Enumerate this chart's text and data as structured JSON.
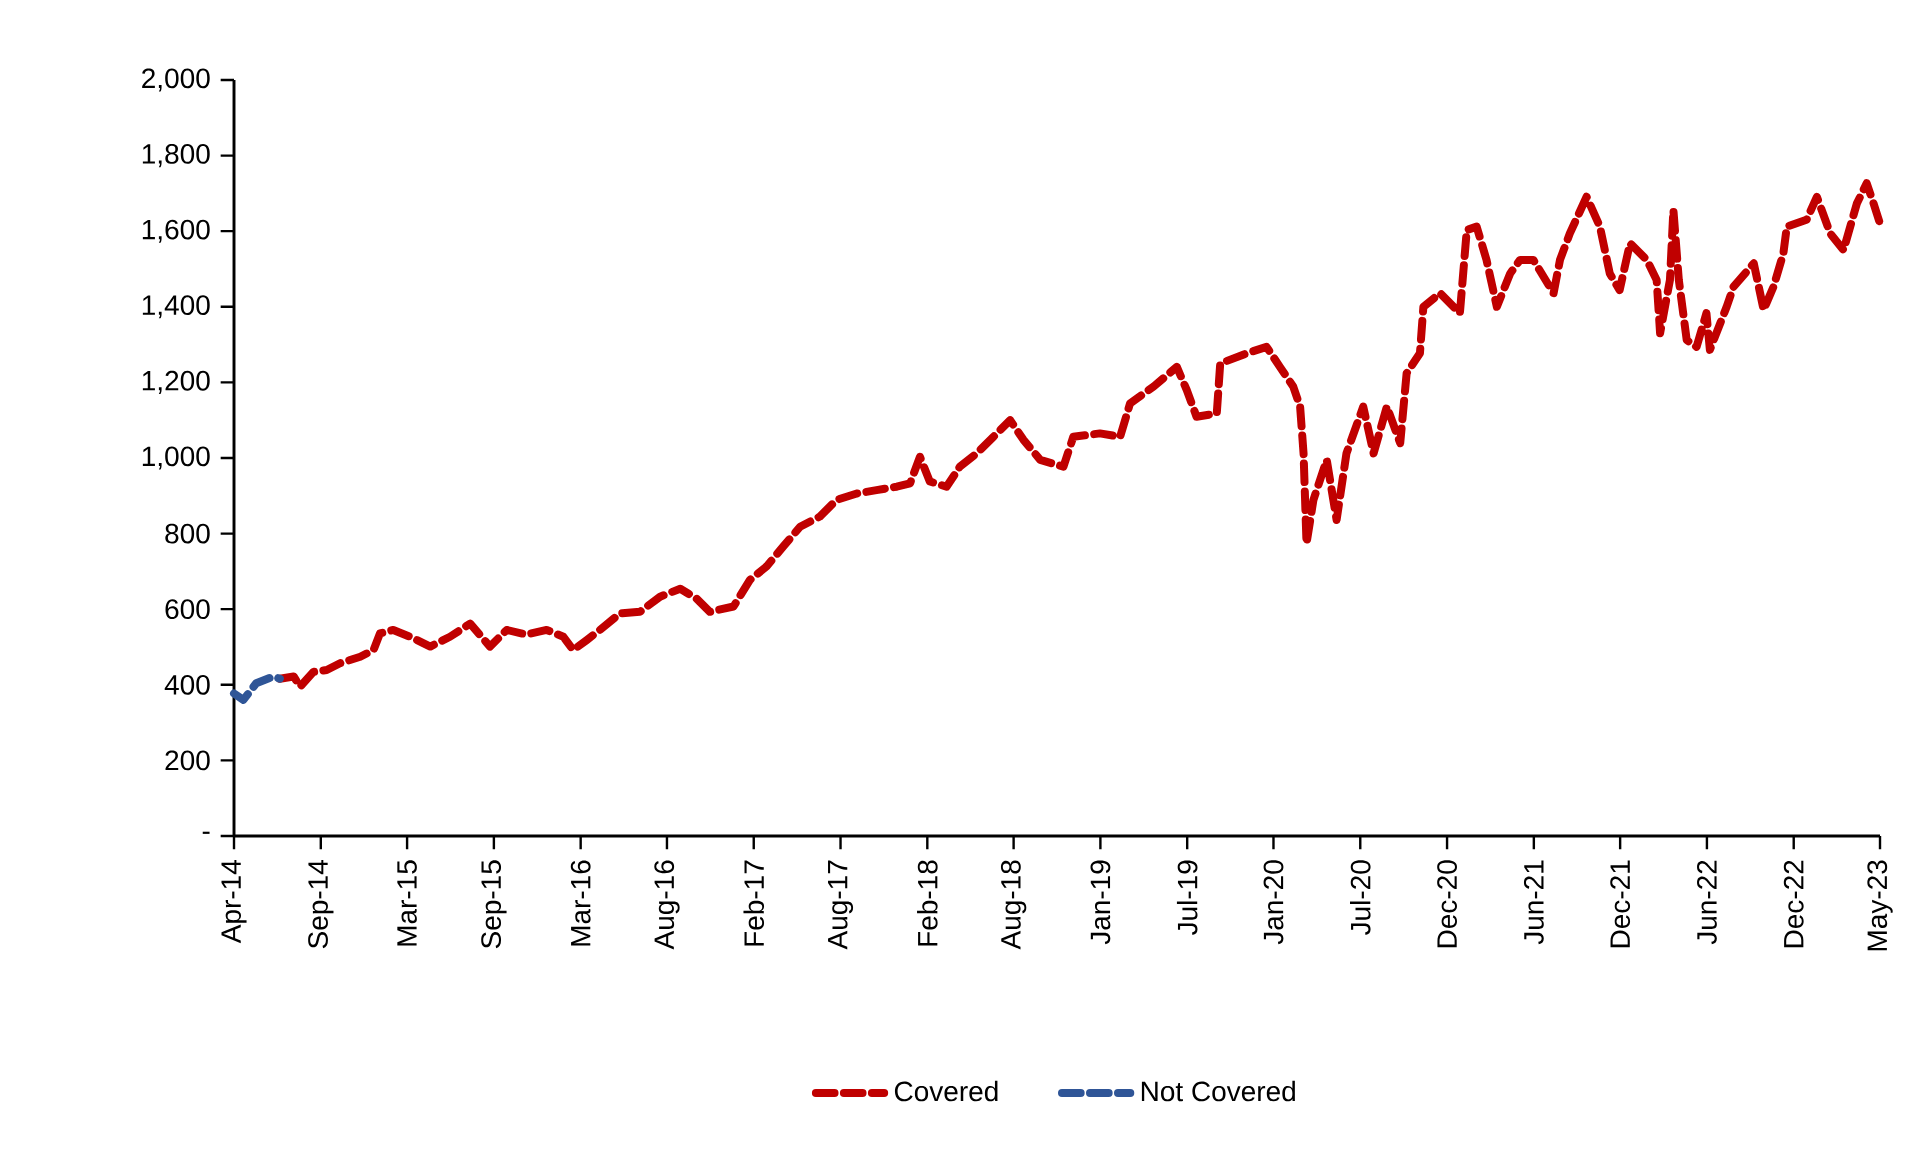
{
  "chart_data": {
    "type": "line",
    "line_style": "dashed",
    "legend": "bottom",
    "grid": false,
    "xlim": [
      "2014-04-05",
      "2023-05-26"
    ],
    "xticks": [
      {
        "value": "2014-04-05",
        "label": "Apr-14"
      },
      {
        "value": "2014-09-28",
        "label": "Sep-14"
      },
      {
        "value": "2015-03-22",
        "label": "Mar-15"
      },
      {
        "value": "2015-09-14",
        "label": "Sep-15"
      },
      {
        "value": "2016-03-08",
        "label": "Mar-16"
      },
      {
        "value": "2016-08-30",
        "label": "Aug-16"
      },
      {
        "value": "2017-02-22",
        "label": "Feb-17"
      },
      {
        "value": "2017-08-17",
        "label": "Aug-17"
      },
      {
        "value": "2018-02-09",
        "label": "Feb-18"
      },
      {
        "value": "2018-08-03",
        "label": "Aug-18"
      },
      {
        "value": "2019-01-26",
        "label": "Jan-19"
      },
      {
        "value": "2019-07-21",
        "label": "Jul-19"
      },
      {
        "value": "2020-01-12",
        "label": "Jan-20"
      },
      {
        "value": "2020-07-06",
        "label": "Jul-20"
      },
      {
        "value": "2020-12-29",
        "label": "Dec-20"
      },
      {
        "value": "2021-06-23",
        "label": "Jun-21"
      },
      {
        "value": "2021-12-15",
        "label": "Dec-21"
      },
      {
        "value": "2022-06-09",
        "label": "Jun-22"
      },
      {
        "value": "2022-12-02",
        "label": "Dec-22"
      },
      {
        "value": "2023-05-26",
        "label": "May-23"
      }
    ],
    "ylim": [
      0,
      2000
    ],
    "yticks": [
      {
        "value": 0,
        "label": "-"
      },
      200,
      400,
      600,
      800,
      {
        "value": 1000,
        "label": "1,000"
      },
      {
        "value": 1200,
        "label": "1,200"
      },
      {
        "value": 1400,
        "label": "1,400"
      },
      {
        "value": 1600,
        "label": "1,600"
      },
      {
        "value": 1800,
        "label": "1,800"
      },
      {
        "value": 2000,
        "label": "2,000"
      }
    ],
    "series": [
      {
        "name": "Covered",
        "color": "#c00000",
        "x": [
          "2014-07-07",
          "2014-08-04",
          "2014-08-17",
          "2014-09-13",
          "2014-10-10",
          "2014-11-06",
          "2014-12-17",
          "2015-01-13",
          "2015-01-26",
          "2015-02-22",
          "2015-03-28",
          "2015-05-08",
          "2015-06-17",
          "2015-07-28",
          "2015-09-06",
          "2015-10-10",
          "2015-11-19",
          "2015-12-30",
          "2016-02-02",
          "2016-02-22",
          "2016-03-20",
          "2016-04-16",
          "2016-05-27",
          "2016-07-06",
          "2016-08-16",
          "2016-09-26",
          "2016-10-29",
          "2016-11-25",
          "2017-01-12",
          "2017-02-14",
          "2017-03-20",
          "2017-04-23",
          "2017-05-27",
          "2017-07-06",
          "2017-08-09",
          "2017-09-19",
          "2017-10-29",
          "2017-12-09",
          "2018-01-05",
          "2018-01-25",
          "2018-02-14",
          "2018-03-20",
          "2018-04-16",
          "2018-05-20",
          "2018-06-23",
          "2018-07-27",
          "2018-08-23",
          "2018-09-26",
          "2018-11-12",
          "2018-12-02",
          "2019-01-25",
          "2019-03-07",
          "2019-03-27",
          "2019-05-14",
          "2019-06-30",
          "2019-07-20",
          "2019-08-09",
          "2019-09-19",
          "2019-09-26",
          "2019-11-19",
          "2019-12-29",
          "2020-01-25",
          "2020-02-21",
          "2020-03-06",
          "2020-03-13",
          "2020-03-19",
          "2020-04-02",
          "2020-04-29",
          "2020-05-19",
          "2020-06-08",
          "2020-07-12",
          "2020-08-02",
          "2020-08-29",
          "2020-09-25",
          "2020-10-08",
          "2020-11-04",
          "2020-11-11",
          "2020-12-15",
          "2021-01-24",
          "2021-02-07",
          "2021-02-27",
          "2021-03-19",
          "2021-04-09",
          "2021-05-06",
          "2021-05-26",
          "2021-06-22",
          "2021-08-02",
          "2021-08-15",
          "2021-09-04",
          "2021-10-08",
          "2021-11-04",
          "2021-11-24",
          "2021-12-14",
          "2022-01-04",
          "2022-02-07",
          "2022-02-27",
          "2022-03-06",
          "2022-03-26",
          "2022-04-02",
          "2022-04-13",
          "2022-04-29",
          "2022-05-19",
          "2022-06-08",
          "2022-06-15",
          "2022-07-19",
          "2022-08-02",
          "2022-09-12",
          "2022-10-02",
          "2022-10-22",
          "2022-11-11",
          "2022-11-18",
          "2022-12-28",
          "2023-01-18",
          "2023-02-14",
          "2023-03-13",
          "2023-04-09",
          "2023-04-29",
          "2023-05-13",
          "2023-05-26"
        ],
        "values": [
          416,
          422,
          395,
          434,
          439,
          457,
          474,
          492,
          536,
          545,
          527,
          501,
          527,
          562,
          501,
          545,
          533,
          545,
          527,
          492,
          518,
          545,
          589,
          593,
          633,
          654,
          628,
          593,
          607,
          677,
          713,
          766,
          818,
          845,
          889,
          906,
          915,
          924,
          933,
          1003,
          938,
          924,
          977,
          1012,
          1056,
          1100,
          1048,
          995,
          977,
          1056,
          1065,
          1056,
          1144,
          1189,
          1241,
          1180,
          1109,
          1118,
          1250,
          1277,
          1294,
          1241,
          1189,
          1136,
          1012,
          774,
          889,
          995,
          836,
          1012,
          1136,
          1012,
          1136,
          1039,
          1224,
          1277,
          1400,
          1436,
          1383,
          1603,
          1612,
          1524,
          1400,
          1488,
          1524,
          1524,
          1436,
          1524,
          1594,
          1691,
          1612,
          1488,
          1444,
          1568,
          1524,
          1471,
          1330,
          1471,
          1656,
          1471,
          1312,
          1294,
          1383,
          1286,
          1400,
          1453,
          1515,
          1392,
          1453,
          1541,
          1612,
          1630,
          1691,
          1594,
          1550,
          1673,
          1727,
          1673,
          1620
        ]
      },
      {
        "name": "Not Covered",
        "color": "#2f5597",
        "x": [
          "2014-04-05",
          "2014-04-24",
          "2014-05-20",
          "2014-06-24",
          "2014-07-07"
        ],
        "values": [
          377,
          360,
          404,
          422,
          416
        ]
      }
    ]
  }
}
